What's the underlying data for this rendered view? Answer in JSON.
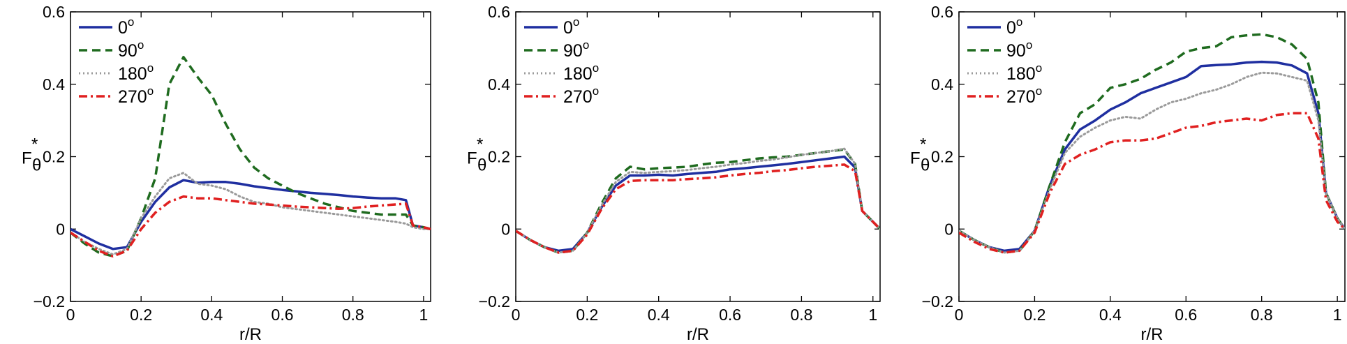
{
  "chart_data": [
    {
      "type": "line",
      "panel": "left",
      "xlabel": "r/R",
      "ylabel": "F",
      "ylabel_sup": "*",
      "ylabel_sub": "θ",
      "xlim": [
        0,
        1.02
      ],
      "ylim": [
        -0.2,
        0.6
      ],
      "xticks": [
        "0",
        "0.2",
        "0.4",
        "0.6",
        "0.8",
        "1"
      ],
      "xtick_values": [
        0,
        0.2,
        0.4,
        0.6,
        0.8,
        1.0
      ],
      "yticks": [
        "−0.2",
        "0",
        "0.2",
        "0.4",
        "0.6"
      ],
      "ytick_values": [
        -0.2,
        0,
        0.2,
        0.4,
        0.6
      ],
      "legend_position": "top-left",
      "series": [
        {
          "name": "0",
          "sup": "o",
          "color": "#1f2fa0",
          "style": "solid",
          "x": [
            0,
            0.04,
            0.08,
            0.12,
            0.16,
            0.2,
            0.24,
            0.28,
            0.32,
            0.36,
            0.4,
            0.44,
            0.48,
            0.52,
            0.56,
            0.6,
            0.64,
            0.68,
            0.72,
            0.76,
            0.8,
            0.84,
            0.88,
            0.92,
            0.95,
            0.97,
            1.0,
            1.02
          ],
          "y": [
            0.0,
            -0.02,
            -0.04,
            -0.055,
            -0.05,
            0.02,
            0.075,
            0.115,
            0.135,
            0.128,
            0.13,
            0.13,
            0.125,
            0.118,
            0.113,
            0.108,
            0.104,
            0.1,
            0.097,
            0.094,
            0.09,
            0.087,
            0.085,
            0.085,
            0.08,
            0.01,
            0.005,
            0.0
          ]
        },
        {
          "name": "90",
          "sup": "o",
          "color": "#1f6b1f",
          "style": "dashed",
          "x": [
            0,
            0.04,
            0.08,
            0.12,
            0.16,
            0.2,
            0.24,
            0.28,
            0.32,
            0.36,
            0.4,
            0.44,
            0.48,
            0.52,
            0.56,
            0.6,
            0.64,
            0.68,
            0.72,
            0.76,
            0.8,
            0.84,
            0.88,
            0.92,
            0.95,
            0.97,
            1.0,
            1.02
          ],
          "y": [
            -0.01,
            -0.04,
            -0.065,
            -0.075,
            -0.06,
            0.03,
            0.14,
            0.4,
            0.475,
            0.42,
            0.37,
            0.29,
            0.22,
            0.17,
            0.14,
            0.12,
            0.1,
            0.085,
            0.07,
            0.06,
            0.05,
            0.045,
            0.04,
            0.04,
            0.04,
            0.01,
            0.005,
            0.0
          ]
        },
        {
          "name": "180",
          "sup": "o",
          "color": "#9a9a9a",
          "style": "dotted",
          "x": [
            0,
            0.04,
            0.08,
            0.12,
            0.16,
            0.2,
            0.24,
            0.28,
            0.32,
            0.36,
            0.4,
            0.44,
            0.48,
            0.52,
            0.56,
            0.6,
            0.64,
            0.68,
            0.72,
            0.76,
            0.8,
            0.84,
            0.88,
            0.92,
            0.95,
            0.97,
            1.0,
            1.02
          ],
          "y": [
            -0.01,
            -0.035,
            -0.055,
            -0.07,
            -0.055,
            0.03,
            0.09,
            0.14,
            0.155,
            0.125,
            0.12,
            0.11,
            0.09,
            0.075,
            0.07,
            0.06,
            0.055,
            0.05,
            0.045,
            0.04,
            0.035,
            0.03,
            0.025,
            0.02,
            0.015,
            0.005,
            0.0,
            0.0
          ]
        },
        {
          "name": "270",
          "sup": "o",
          "color": "#e02020",
          "style": "dashdot",
          "x": [
            0,
            0.04,
            0.08,
            0.12,
            0.16,
            0.2,
            0.24,
            0.28,
            0.32,
            0.36,
            0.4,
            0.44,
            0.48,
            0.52,
            0.56,
            0.6,
            0.64,
            0.68,
            0.72,
            0.76,
            0.8,
            0.84,
            0.88,
            0.92,
            0.95,
            0.97,
            1.0,
            1.02
          ],
          "y": [
            -0.01,
            -0.035,
            -0.06,
            -0.075,
            -0.06,
            0.0,
            0.045,
            0.075,
            0.09,
            0.085,
            0.085,
            0.08,
            0.075,
            0.07,
            0.068,
            0.065,
            0.062,
            0.06,
            0.058,
            0.056,
            0.058,
            0.062,
            0.065,
            0.068,
            0.07,
            0.01,
            0.005,
            0.0
          ]
        }
      ]
    },
    {
      "type": "line",
      "panel": "middle",
      "xlabel": "r/R",
      "ylabel": "F",
      "ylabel_sup": "*",
      "ylabel_sub": "θ",
      "xlim": [
        0,
        1.02
      ],
      "ylim": [
        -0.2,
        0.6
      ],
      "xticks": [
        "0",
        "0.2",
        "0.4",
        "0.6",
        "0.8",
        "1"
      ],
      "xtick_values": [
        0,
        0.2,
        0.4,
        0.6,
        0.8,
        1.0
      ],
      "yticks": [
        "−0.2",
        "0",
        "0.2",
        "0.4",
        "0.6"
      ],
      "ytick_values": [
        -0.2,
        0,
        0.2,
        0.4,
        0.6
      ],
      "legend_position": "top-left",
      "series": [
        {
          "name": "0",
          "sup": "o",
          "color": "#1f2fa0",
          "style": "solid",
          "x": [
            0,
            0.04,
            0.08,
            0.12,
            0.16,
            0.2,
            0.24,
            0.28,
            0.32,
            0.36,
            0.4,
            0.44,
            0.48,
            0.52,
            0.56,
            0.6,
            0.64,
            0.68,
            0.72,
            0.76,
            0.8,
            0.84,
            0.88,
            0.92,
            0.95,
            0.97,
            1.0,
            1.02
          ],
          "y": [
            -0.005,
            -0.03,
            -0.05,
            -0.06,
            -0.055,
            -0.01,
            0.06,
            0.12,
            0.148,
            0.148,
            0.15,
            0.148,
            0.152,
            0.155,
            0.158,
            0.165,
            0.168,
            0.172,
            0.176,
            0.18,
            0.185,
            0.19,
            0.195,
            0.2,
            0.17,
            0.05,
            0.02,
            0.0
          ]
        },
        {
          "name": "90",
          "sup": "o",
          "color": "#1f6b1f",
          "style": "dashed",
          "x": [
            0,
            0.04,
            0.08,
            0.12,
            0.16,
            0.2,
            0.24,
            0.28,
            0.32,
            0.36,
            0.4,
            0.44,
            0.48,
            0.52,
            0.56,
            0.6,
            0.64,
            0.68,
            0.72,
            0.76,
            0.8,
            0.84,
            0.88,
            0.92,
            0.95,
            0.97,
            1.0,
            1.02
          ],
          "y": [
            -0.005,
            -0.03,
            -0.05,
            -0.065,
            -0.06,
            -0.01,
            0.07,
            0.14,
            0.172,
            0.165,
            0.168,
            0.17,
            0.172,
            0.178,
            0.183,
            0.185,
            0.19,
            0.195,
            0.198,
            0.2,
            0.205,
            0.21,
            0.215,
            0.22,
            0.18,
            0.05,
            0.02,
            0.0
          ]
        },
        {
          "name": "180",
          "sup": "o",
          "color": "#9a9a9a",
          "style": "dotted",
          "x": [
            0,
            0.04,
            0.08,
            0.12,
            0.16,
            0.2,
            0.24,
            0.28,
            0.32,
            0.36,
            0.4,
            0.44,
            0.48,
            0.52,
            0.56,
            0.6,
            0.64,
            0.68,
            0.72,
            0.76,
            0.8,
            0.84,
            0.88,
            0.92,
            0.95,
            0.97,
            1.0,
            1.02
          ],
          "y": [
            -0.005,
            -0.03,
            -0.05,
            -0.065,
            -0.06,
            -0.01,
            0.065,
            0.13,
            0.158,
            0.155,
            0.158,
            0.16,
            0.163,
            0.168,
            0.172,
            0.178,
            0.182,
            0.188,
            0.192,
            0.198,
            0.205,
            0.21,
            0.215,
            0.222,
            0.18,
            0.05,
            0.02,
            0.0
          ]
        },
        {
          "name": "270",
          "sup": "o",
          "color": "#e02020",
          "style": "dashdot",
          "x": [
            0,
            0.04,
            0.08,
            0.12,
            0.16,
            0.2,
            0.24,
            0.28,
            0.32,
            0.36,
            0.4,
            0.44,
            0.48,
            0.52,
            0.56,
            0.6,
            0.64,
            0.68,
            0.72,
            0.76,
            0.8,
            0.84,
            0.88,
            0.92,
            0.95,
            0.97,
            1.0,
            1.02
          ],
          "y": [
            -0.005,
            -0.03,
            -0.05,
            -0.065,
            -0.06,
            -0.015,
            0.055,
            0.11,
            0.133,
            0.135,
            0.135,
            0.135,
            0.138,
            0.14,
            0.143,
            0.148,
            0.152,
            0.155,
            0.16,
            0.163,
            0.168,
            0.172,
            0.175,
            0.178,
            0.16,
            0.05,
            0.02,
            0.0
          ]
        }
      ]
    },
    {
      "type": "line",
      "panel": "right",
      "xlabel": "r/R",
      "ylabel": "F",
      "ylabel_sup": "*",
      "ylabel_sub": "θ",
      "xlim": [
        0,
        1.02
      ],
      "ylim": [
        -0.2,
        0.6
      ],
      "xticks": [
        "0",
        "0.2",
        "0.4",
        "0.6",
        "0.8",
        "1"
      ],
      "xtick_values": [
        0,
        0.2,
        0.4,
        0.6,
        0.8,
        1.0
      ],
      "yticks": [
        "−0.2",
        "0",
        "0.2",
        "0.4",
        "0.6"
      ],
      "ytick_values": [
        -0.2,
        0,
        0.2,
        0.4,
        0.6
      ],
      "legend_position": "top-left",
      "series": [
        {
          "name": "0",
          "sup": "o",
          "color": "#1f2fa0",
          "style": "solid",
          "x": [
            0,
            0.04,
            0.08,
            0.12,
            0.16,
            0.2,
            0.24,
            0.28,
            0.32,
            0.36,
            0.4,
            0.44,
            0.48,
            0.52,
            0.56,
            0.6,
            0.64,
            0.68,
            0.72,
            0.76,
            0.8,
            0.84,
            0.88,
            0.92,
            0.95,
            0.97,
            1.0,
            1.02
          ],
          "y": [
            -0.005,
            -0.03,
            -0.05,
            -0.06,
            -0.055,
            -0.005,
            0.12,
            0.22,
            0.275,
            0.3,
            0.33,
            0.35,
            0.375,
            0.39,
            0.405,
            0.42,
            0.45,
            0.453,
            0.455,
            0.46,
            0.462,
            0.46,
            0.452,
            0.43,
            0.32,
            0.1,
            0.03,
            0.0
          ]
        },
        {
          "name": "90",
          "sup": "o",
          "color": "#1f6b1f",
          "style": "dashed",
          "x": [
            0,
            0.04,
            0.08,
            0.12,
            0.16,
            0.2,
            0.24,
            0.28,
            0.32,
            0.36,
            0.4,
            0.44,
            0.48,
            0.52,
            0.56,
            0.6,
            0.64,
            0.68,
            0.72,
            0.76,
            0.8,
            0.84,
            0.88,
            0.92,
            0.95,
            0.97,
            1.0,
            1.02
          ],
          "y": [
            -0.005,
            -0.03,
            -0.05,
            -0.065,
            -0.06,
            -0.005,
            0.12,
            0.24,
            0.32,
            0.345,
            0.39,
            0.4,
            0.415,
            0.44,
            0.46,
            0.49,
            0.5,
            0.505,
            0.53,
            0.535,
            0.538,
            0.53,
            0.51,
            0.47,
            0.35,
            0.1,
            0.03,
            0.0
          ]
        },
        {
          "name": "180",
          "sup": "o",
          "color": "#9a9a9a",
          "style": "dotted",
          "x": [
            0,
            0.04,
            0.08,
            0.12,
            0.16,
            0.2,
            0.24,
            0.28,
            0.32,
            0.36,
            0.4,
            0.44,
            0.48,
            0.52,
            0.56,
            0.6,
            0.64,
            0.68,
            0.72,
            0.76,
            0.8,
            0.84,
            0.88,
            0.92,
            0.95,
            0.97,
            1.0,
            1.02
          ],
          "y": [
            -0.005,
            -0.03,
            -0.05,
            -0.065,
            -0.06,
            -0.005,
            0.11,
            0.21,
            0.255,
            0.28,
            0.3,
            0.31,
            0.305,
            0.33,
            0.35,
            0.36,
            0.375,
            0.385,
            0.4,
            0.42,
            0.432,
            0.43,
            0.42,
            0.41,
            0.3,
            0.1,
            0.03,
            0.0
          ]
        },
        {
          "name": "270",
          "sup": "o",
          "color": "#e02020",
          "style": "dashdot",
          "x": [
            0,
            0.04,
            0.08,
            0.12,
            0.16,
            0.2,
            0.24,
            0.28,
            0.32,
            0.36,
            0.4,
            0.44,
            0.48,
            0.52,
            0.56,
            0.6,
            0.64,
            0.68,
            0.72,
            0.76,
            0.8,
            0.84,
            0.88,
            0.92,
            0.95,
            0.97,
            1.0,
            1.02
          ],
          "y": [
            -0.01,
            -0.035,
            -0.055,
            -0.065,
            -0.06,
            -0.01,
            0.1,
            0.18,
            0.205,
            0.22,
            0.24,
            0.245,
            0.245,
            0.25,
            0.265,
            0.28,
            0.285,
            0.295,
            0.3,
            0.305,
            0.3,
            0.315,
            0.32,
            0.32,
            0.25,
            0.08,
            0.02,
            0.0
          ]
        }
      ]
    }
  ]
}
